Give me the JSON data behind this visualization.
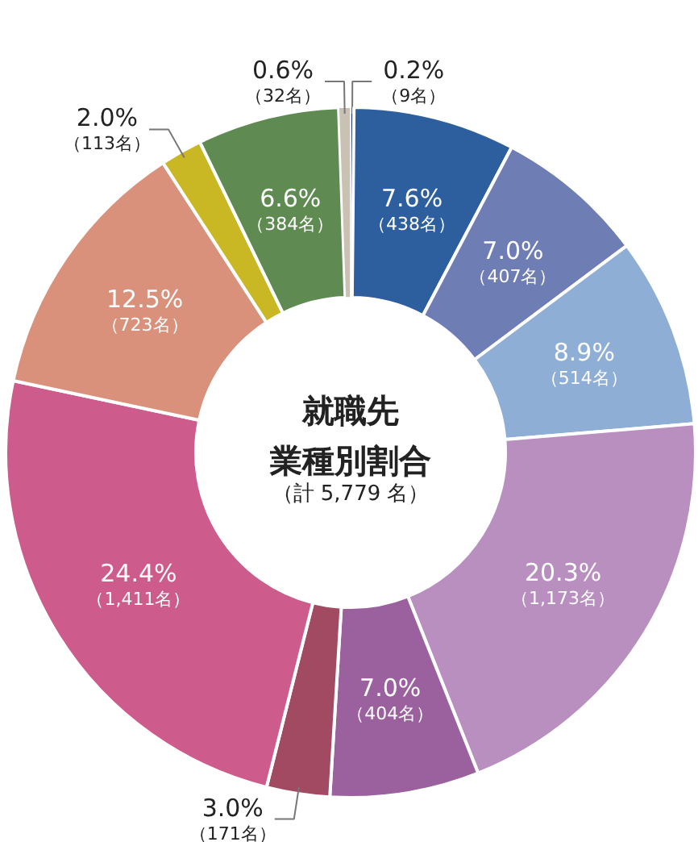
{
  "chart_data": {
    "type": "donut",
    "title": "就職先業種別割合",
    "subtitle": "（計 5,779 名）",
    "categories": [
      null,
      null,
      null,
      null,
      null,
      null,
      null,
      null,
      null,
      null,
      null,
      null
    ],
    "values": [
      9,
      438,
      407,
      514,
      1173,
      404,
      171,
      1411,
      723,
      113,
      384,
      32
    ],
    "colors": [
      "#1f3f75",
      "#2d5e9e",
      "#6f7db5",
      "#8eaed6",
      "#b88fbf",
      "#9b619f",
      "#a14a62",
      "#cd5b8b",
      "#d9917c",
      "#c9b724",
      "#5f8b52",
      "#c9c1b2"
    ],
    "value_labels": [
      "0.2%\n（9名）",
      "7.6%\n（438名）",
      "7.0%\n（407名）",
      "8.9%\n（514名）",
      "20.3%\n（1,173名）",
      "7.0%\n（404名）",
      "3.0%\n（171名）",
      "24.4%\n（1,411名）",
      "12.5%\n（723名）",
      "2.0%\n（113名）",
      "6.6%\n（384名）",
      "0.6%\n（32名）"
    ]
  }
}
